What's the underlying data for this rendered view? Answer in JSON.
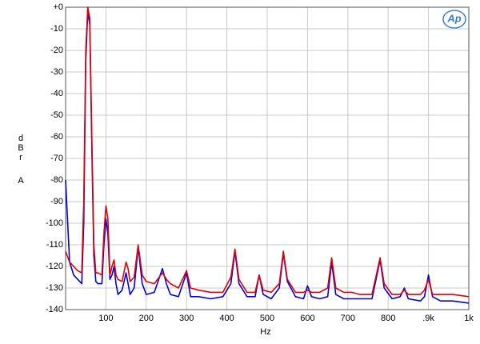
{
  "chart_data": {
    "type": "line",
    "y_label": "dBr",
    "y_label_unit": "A",
    "x_label": "Hz",
    "logo": "Ap",
    "x": [
      0,
      10,
      20,
      30,
      40,
      45,
      50,
      55,
      60,
      65,
      70,
      75,
      80,
      90,
      95,
      100,
      105,
      110,
      115,
      120,
      125,
      130,
      140,
      150,
      155,
      160,
      170,
      180,
      190,
      200,
      220,
      240,
      250,
      260,
      280,
      300,
      310,
      330,
      360,
      390,
      410,
      420,
      430,
      450,
      470,
      480,
      490,
      510,
      530,
      540,
      550,
      570,
      590,
      600,
      610,
      630,
      650,
      660,
      670,
      690,
      710,
      730,
      760,
      780,
      790,
      810,
      830,
      840,
      850,
      880,
      890,
      900,
      910,
      930,
      960,
      1000
    ],
    "series": [
      {
        "color": "#0000e0",
        "values": [
          -80,
          -118,
          -124,
          -126,
          -128,
          -100,
          -25,
          -2,
          -8,
          -65,
          -115,
          -127,
          -128,
          -128,
          -110,
          -98,
          -105,
          -126,
          -124,
          -120,
          -128,
          -133,
          -131,
          -123,
          -128,
          -133,
          -130,
          -111,
          -128,
          -133,
          -132,
          -121,
          -128,
          -133,
          -134,
          -123,
          -134,
          -134,
          -135,
          -134,
          -128,
          -113,
          -128,
          -134,
          -134,
          -124,
          -133,
          -135,
          -130,
          -114,
          -127,
          -134,
          -135,
          -129,
          -134,
          -135,
          -134,
          -118,
          -133,
          -135,
          -135,
          -135,
          -135,
          -117,
          -130,
          -135,
          -134,
          -130,
          -135,
          -136,
          -134,
          -124,
          -134,
          -136,
          -136,
          -137
        ]
      },
      {
        "color": "#e00000",
        "values": [
          -113,
          -118,
          -120,
          -122,
          -123,
          -90,
          -20,
          0,
          -5,
          -60,
          -110,
          -123,
          -123,
          -124,
          -105,
          -92,
          -98,
          -124,
          -120,
          -117,
          -124,
          -126,
          -127,
          -118,
          -121,
          -127,
          -125,
          -110,
          -124,
          -127,
          -128,
          -123,
          -126,
          -128,
          -130,
          -122,
          -130,
          -131,
          -132,
          -132,
          -125,
          -112,
          -126,
          -132,
          -132,
          -124,
          -131,
          -132,
          -128,
          -113,
          -126,
          -132,
          -132,
          -131,
          -132,
          -132,
          -130,
          -116,
          -130,
          -132,
          -132,
          -133,
          -133,
          -116,
          -128,
          -133,
          -133,
          -131,
          -133,
          -133,
          -131,
          -126,
          -133,
          -133,
          -133,
          -134
        ]
      }
    ],
    "xlim": [
      0,
      1000
    ],
    "xticks": [
      100,
      200,
      300,
      400,
      500,
      600,
      700,
      800,
      {
        "value": 900,
        "label": ".9k"
      },
      {
        "value": 1000,
        "label": "1k"
      }
    ],
    "ylim": [
      -140,
      0
    ],
    "yticks": [
      {
        "value": 0,
        "label": "+0"
      },
      -10,
      -20,
      -30,
      -40,
      -50,
      -60,
      -70,
      -80,
      -90,
      -100,
      -110,
      -120,
      -130,
      -140
    ],
    "grid": true
  }
}
